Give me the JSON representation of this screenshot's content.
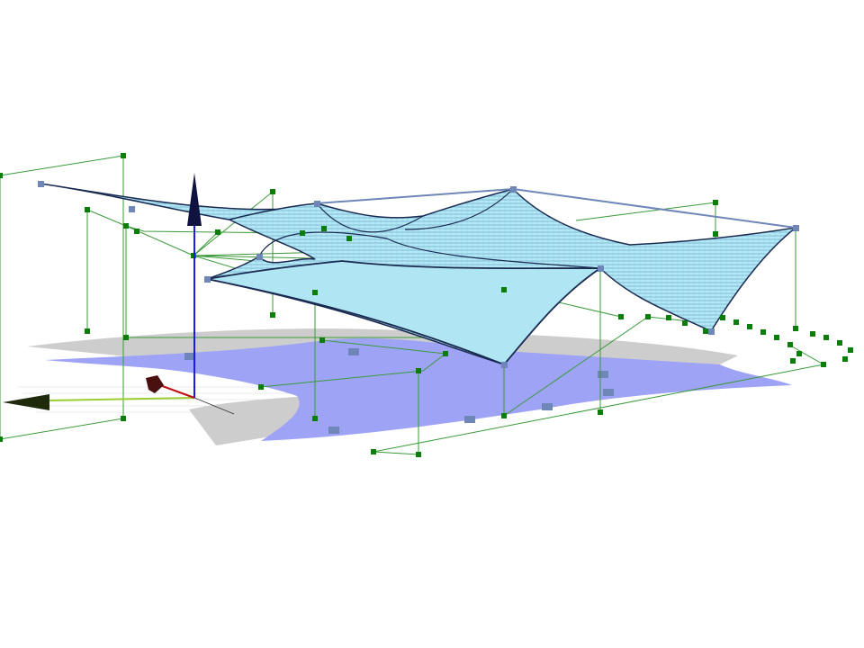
{
  "viewport": {
    "background": "#ffffff",
    "colors": {
      "membrane": "#a9e3f2",
      "membrane_edge": "#6f86b8",
      "shadow_blue": "#9ea3f5",
      "shadow_grey": "#c8c8c8",
      "control_point": "#0a7d0a",
      "control_line": "#3a9a3a",
      "corner_node": "#6f86b8",
      "axis_z": "#1a1aee",
      "axis_x": "#9acd32",
      "axis_y": "#b01010"
    },
    "icons": [
      "axis-triad-icon",
      "z-axis-arrow-icon",
      "x-axis-arrow-icon",
      "y-axis-arrow-icon"
    ]
  }
}
